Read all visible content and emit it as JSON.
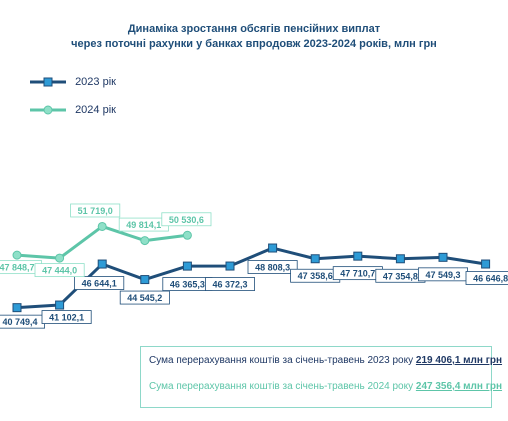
{
  "title": {
    "line1": "Динаміка зростання обсягів пенсійних виплат",
    "line2": "через поточні рахунки у банках впродовж 2023-2024 років, млн грн"
  },
  "colors": {
    "series_2023": "#1f4e79",
    "marker_2023": "#2e9bd6",
    "series_2024": "#5dc5a8",
    "marker_2024": "#8fe0c8"
  },
  "chart_data": {
    "type": "line",
    "title": "Динаміка зростання обсягів пенсійних виплат через поточні рахунки у банках впродовж 2023-2024 років, млн грн",
    "xlabel": "",
    "ylabel": "",
    "grid": false,
    "legend": "top-left",
    "ylim": [
      38000,
      58000
    ],
    "series": [
      {
        "name": "2023 рік",
        "values": [
          40749.4,
          41102.1,
          46644.1,
          44545.2,
          46365.3,
          46372.3,
          48808.3,
          47358.6,
          47710.7,
          47354.8,
          47549.3,
          46646.8
        ],
        "labels": [
          "40 749,4",
          "41 102,1",
          "46 644,1",
          "44 545,2",
          "46 365,3",
          "46 372,3",
          "48 808,3",
          "47 358,6",
          "47 710,7",
          "47 354,8",
          "47 549,3",
          "46 646,8"
        ]
      },
      {
        "name": "2024 рік",
        "values": [
          47848.7,
          47444.0,
          51719.0,
          49814.1,
          50530.6
        ],
        "labels": [
          "47 848,7",
          "47 444,0",
          "51 719,0",
          "49 814,1",
          "50 530,6"
        ]
      }
    ]
  },
  "summary": {
    "line1_text": "Сума перерахування коштів  за січень-травень 2023 року ",
    "line1_value": "219 406,1 млн грн",
    "line2_text": "Сума перерахування коштів  за січень-травень 2024 року ",
    "line2_value": "247 356,4 млн грн"
  }
}
